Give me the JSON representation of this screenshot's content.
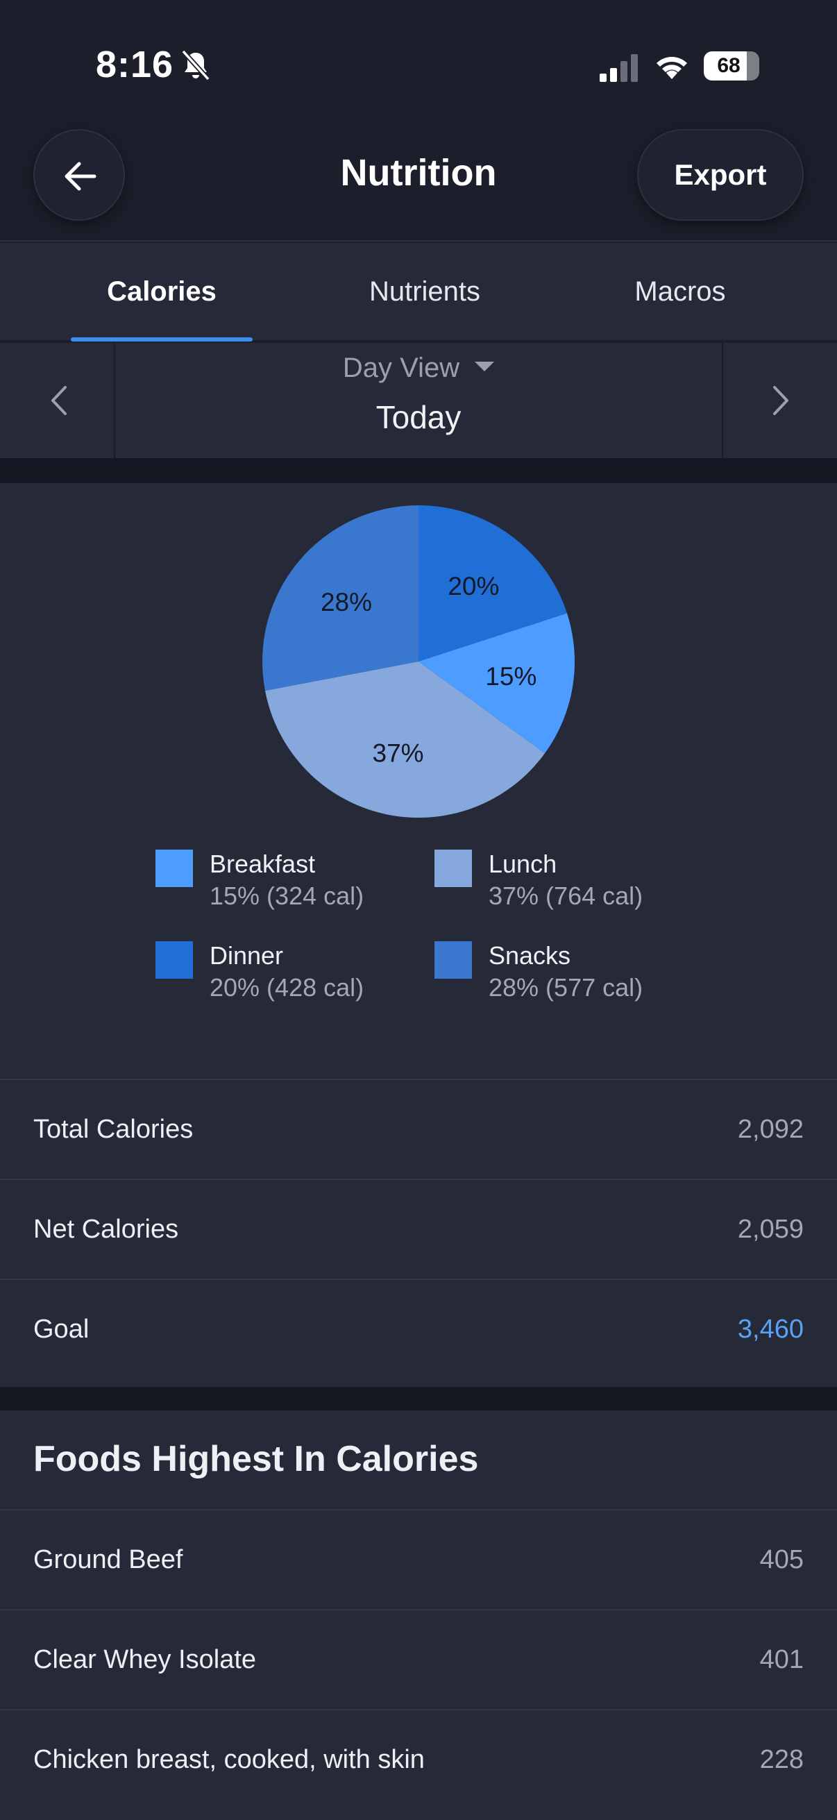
{
  "status_bar": {
    "time": "8:16",
    "battery": "68"
  },
  "header": {
    "title": "Nutrition",
    "export_label": "Export"
  },
  "tabs": [
    {
      "label": "Calories",
      "active": true
    },
    {
      "label": "Nutrients",
      "active": false
    },
    {
      "label": "Macros",
      "active": false
    }
  ],
  "date_nav": {
    "view_label": "Day View",
    "date_label": "Today"
  },
  "chart_data": {
    "type": "pie",
    "slices": [
      {
        "name": "Dinner",
        "percent": 20,
        "label": "20%",
        "color": "#1f6fd6"
      },
      {
        "name": "Breakfast",
        "percent": 15,
        "label": "15%",
        "color": "#4d9cff"
      },
      {
        "name": "Lunch",
        "percent": 37,
        "label": "37%",
        "color": "#86a8dc"
      },
      {
        "name": "Snacks",
        "percent": 28,
        "label": "28%",
        "color": "#3a78d0"
      }
    ]
  },
  "legend": [
    {
      "name": "Breakfast",
      "detail": "15% (324 cal)",
      "color": "#4d9cff"
    },
    {
      "name": "Lunch",
      "detail": "37% (764 cal)",
      "color": "#86a8dc"
    },
    {
      "name": "Dinner",
      "detail": "20% (428 cal)",
      "color": "#1f6fd6"
    },
    {
      "name": "Snacks",
      "detail": "28% (577 cal)",
      "color": "#3a78d0"
    }
  ],
  "summary": {
    "total_label": "Total Calories",
    "total_value": "2,092",
    "net_label": "Net Calories",
    "net_value": "2,059",
    "goal_label": "Goal",
    "goal_value": "3,460"
  },
  "foods": {
    "title": "Foods Highest In Calories",
    "items": [
      {
        "name": "Ground Beef",
        "value": "405"
      },
      {
        "name": "Clear Whey Isolate",
        "value": "401"
      },
      {
        "name": "Chicken breast, cooked, with skin",
        "value": "228"
      }
    ]
  },
  "colors": {
    "accent": "#3d8ef0",
    "goal": "#5aa2f5",
    "background": "#1c1f2b",
    "card": "#262a38"
  }
}
